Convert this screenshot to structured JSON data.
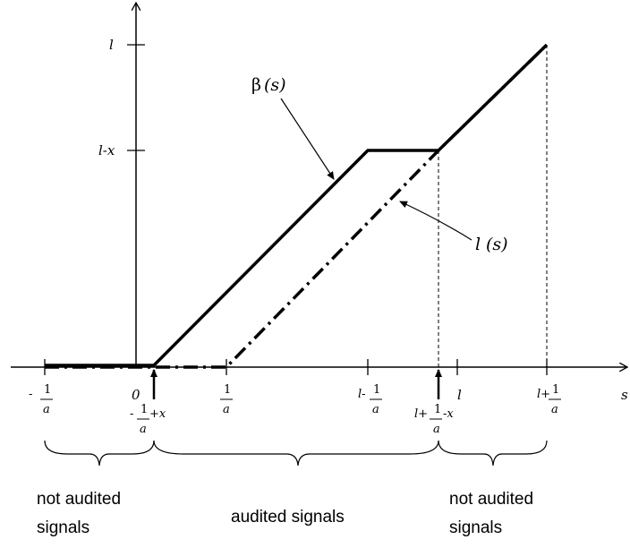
{
  "axes": {
    "y_label": "l",
    "x_label": "s",
    "y_tick_top": "l",
    "y_tick_mid": "l-x"
  },
  "x_ticks": {
    "neg_inv_a": {
      "prefix": "-",
      "num": "1",
      "den": "a"
    },
    "zero": "0",
    "inv_a": {
      "num": "1",
      "den": "a"
    },
    "l_minus_inv_a": {
      "prefix": "l-",
      "num": "1",
      "den": "a"
    },
    "l": "l",
    "l_plus_inv_a": {
      "prefix": "l+",
      "num": "1",
      "den": "a"
    }
  },
  "markers": {
    "left": {
      "prefix": "-",
      "num": "1",
      "den": "a",
      "suffix": "+x"
    },
    "right": {
      "prefix": "l+",
      "num": "1",
      "den": "a",
      "suffix": "-x"
    }
  },
  "curves": {
    "beta": {
      "name": "β",
      "arg": "(s)"
    },
    "l": {
      "name": "l",
      "arg": "(s)"
    }
  },
  "regions": {
    "left": [
      "not audited",
      "signals"
    ],
    "middle": [
      "audited signals"
    ],
    "right": [
      "not audited",
      "signals"
    ]
  }
}
